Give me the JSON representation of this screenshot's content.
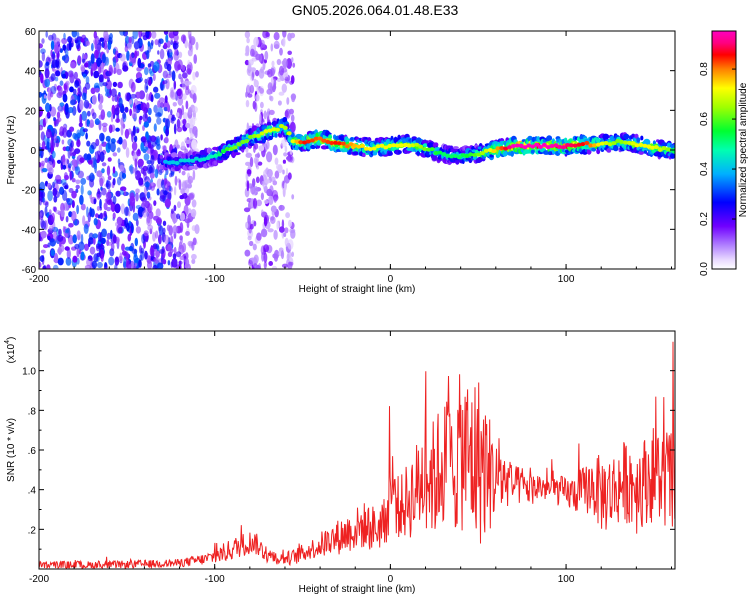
{
  "title": "GN05.2026.064.01.48.E33",
  "chart_data": [
    {
      "type": "heatmap",
      "xlabel": "Height of straight line (km)",
      "ylabel": "Frequency (Hz)",
      "xlim": [
        -200,
        162
      ],
      "ylim": [
        -60,
        60
      ],
      "x_ticks": [
        -200,
        -100,
        0,
        100
      ],
      "y_ticks": [
        -60,
        -40,
        -20,
        0,
        20,
        40,
        60
      ],
      "colorbar": {
        "label": "Normalized spectral amplitude",
        "range": [
          0,
          1
        ],
        "ticks": [
          "0.0",
          "0.2",
          "0.4",
          "0.6",
          "0.8"
        ],
        "colors": [
          "#ffffff",
          "#e8d8ff",
          "#9a5cff",
          "#5a00e0",
          "#0000ff",
          "#00c8ff",
          "#00ff80",
          "#40ff00",
          "#ffff00",
          "#ff8000",
          "#ff0000",
          "#ff0080",
          "#ff00ff"
        ]
      },
      "ridge": {
        "x": [
          -130,
          -120,
          -110,
          -100,
          -90,
          -80,
          -70,
          -60,
          -55,
          -50,
          -40,
          -30,
          -20,
          -10,
          0,
          10,
          20,
          30,
          40,
          50,
          60,
          70,
          80,
          90,
          100,
          110,
          120,
          130,
          140,
          150,
          160
        ],
        "freq": [
          -6,
          -6,
          -5,
          -3,
          1,
          6,
          9,
          12,
          4,
          4,
          6,
          3,
          2,
          1,
          2,
          3,
          1,
          -2,
          -3,
          -2,
          0,
          2,
          2,
          2,
          2,
          3,
          3,
          4,
          3,
          1,
          0
        ],
        "amplitude": [
          0.35,
          0.4,
          0.4,
          0.45,
          0.6,
          0.6,
          0.7,
          0.65,
          0.7,
          0.85,
          0.8,
          0.85,
          0.75,
          0.7,
          0.7,
          0.7,
          0.6,
          0.5,
          0.5,
          0.6,
          0.75,
          0.95,
          0.95,
          0.95,
          0.9,
          0.85,
          0.7,
          0.6,
          0.7,
          0.7,
          0.6
        ]
      },
      "noise_regions": [
        {
          "x_range": [
            -200,
            -110
          ],
          "amplitude": 0.3
        },
        {
          "x_range": [
            -82,
            -55
          ],
          "amplitude": 0.15
        }
      ]
    },
    {
      "type": "line",
      "xlabel": "Height of straight line (km)",
      "ylabel": "SNR (10 * v/v)",
      "scale_label": "(x10",
      "scale_exponent": "4",
      "xlim": [
        -200,
        162
      ],
      "ylim": [
        0,
        1.2
      ],
      "x_ticks": [
        -200,
        -100,
        0,
        100
      ],
      "y_ticks": [
        0.2,
        0.4,
        0.6,
        0.8,
        1.0
      ],
      "series": [
        {
          "color": "#ee2222",
          "x": [
            -200,
            -180,
            -160,
            -140,
            -120,
            -105,
            -95,
            -85,
            -78,
            -70,
            -62,
            -55,
            -45,
            -35,
            -25,
            -15,
            -8,
            -2,
            0,
            5,
            10,
            15,
            20,
            25,
            30,
            35,
            40,
            45,
            50,
            55,
            60,
            65,
            70,
            75,
            80,
            85,
            90,
            95,
            100,
            105,
            110,
            115,
            120,
            125,
            130,
            135,
            140,
            145,
            150,
            155,
            160,
            162
          ],
          "y": [
            0.02,
            0.02,
            0.02,
            0.025,
            0.03,
            0.05,
            0.08,
            0.12,
            0.14,
            0.07,
            0.05,
            0.06,
            0.1,
            0.14,
            0.18,
            0.22,
            0.2,
            0.25,
            0.45,
            0.3,
            0.35,
            0.4,
            0.5,
            0.45,
            0.55,
            0.5,
            0.6,
            0.55,
            0.55,
            0.5,
            0.45,
            0.45,
            0.42,
            0.42,
            0.4,
            0.42,
            0.4,
            0.4,
            0.38,
            0.38,
            0.4,
            0.42,
            0.38,
            0.38,
            0.42,
            0.45,
            0.42,
            0.45,
            0.48,
            0.45,
            0.45,
            0.35
          ],
          "spread": [
            0.02,
            0.02,
            0.02,
            0.02,
            0.02,
            0.03,
            0.05,
            0.06,
            0.06,
            0.04,
            0.03,
            0.04,
            0.05,
            0.08,
            0.1,
            0.12,
            0.12,
            0.12,
            0.25,
            0.15,
            0.2,
            0.25,
            0.3,
            0.3,
            0.35,
            0.35,
            0.4,
            0.45,
            0.45,
            0.35,
            0.2,
            0.15,
            0.1,
            0.1,
            0.08,
            0.08,
            0.06,
            0.08,
            0.08,
            0.1,
            0.12,
            0.15,
            0.2,
            0.2,
            0.2,
            0.22,
            0.25,
            0.22,
            0.25,
            0.25,
            0.3,
            0.35
          ]
        }
      ]
    }
  ]
}
